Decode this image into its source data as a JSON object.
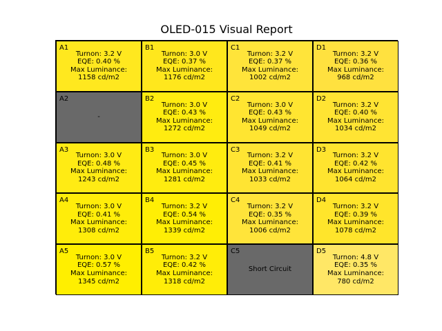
{
  "chart_data": {
    "type": "heatmap",
    "title": "OLED-015 Visual Report",
    "colors": {
      "failed": "#696969",
      "colormap": "luminance-scaled yellow",
      "border": "#000000"
    },
    "labels": {
      "turnon": "Turnon:",
      "eqe": "EQE:",
      "max_luminance": "Max Luminance:"
    },
    "cells": [
      {
        "id": "A1",
        "status": "ok",
        "turnon": "3.2 V",
        "eqe": "0.40 %",
        "max_lum": 1158,
        "lum_text": "1158 cd/m2",
        "color": "#ffe81f"
      },
      {
        "id": "B1",
        "status": "ok",
        "turnon": "3.0 V",
        "eqe": "0.37 %",
        "max_lum": 1176,
        "lum_text": "1176 cd/m2",
        "color": "#ffe71d"
      },
      {
        "id": "C1",
        "status": "ok",
        "turnon": "3.2 V",
        "eqe": "0.37 %",
        "max_lum": 1002,
        "lum_text": "1002 cd/m2",
        "color": "#ffe43a"
      },
      {
        "id": "D1",
        "status": "ok",
        "turnon": "3.2 V",
        "eqe": "0.36 %",
        "max_lum": 968,
        "lum_text": "968 cd/m2",
        "color": "#ffe13f"
      },
      {
        "id": "A2",
        "status": "fail",
        "text": "-",
        "color": "#696969"
      },
      {
        "id": "B2",
        "status": "ok",
        "turnon": "3.0 V",
        "eqe": "0.43 %",
        "max_lum": 1272,
        "lum_text": "1272 cd/m2",
        "color": "#ffec10"
      },
      {
        "id": "C2",
        "status": "ok",
        "turnon": "3.0 V",
        "eqe": "0.43 %",
        "max_lum": 1049,
        "lum_text": "1049 cd/m2",
        "color": "#ffe531"
      },
      {
        "id": "D2",
        "status": "ok",
        "turnon": "3.2 V",
        "eqe": "0.40 %",
        "max_lum": 1034,
        "lum_text": "1034 cd/m2",
        "color": "#ffe433"
      },
      {
        "id": "A3",
        "status": "ok",
        "turnon": "3.0 V",
        "eqe": "0.48 %",
        "max_lum": 1243,
        "lum_text": "1243 cd/m2",
        "color": "#ffeb14"
      },
      {
        "id": "B3",
        "status": "ok",
        "turnon": "3.0 V",
        "eqe": "0.45 %",
        "max_lum": 1281,
        "lum_text": "1281 cd/m2",
        "color": "#ffec0f"
      },
      {
        "id": "C3",
        "status": "ok",
        "turnon": "3.2 V",
        "eqe": "0.41 %",
        "max_lum": 1033,
        "lum_text": "1033 cd/m2",
        "color": "#ffe433"
      },
      {
        "id": "D3",
        "status": "ok",
        "turnon": "3.2 V",
        "eqe": "0.42 %",
        "max_lum": 1064,
        "lum_text": "1064 cd/m2",
        "color": "#ffe42f"
      },
      {
        "id": "A4",
        "status": "ok",
        "turnon": "3.0 V",
        "eqe": "0.41 %",
        "max_lum": 1308,
        "lum_text": "1308 cd/m2",
        "color": "#ffed0a"
      },
      {
        "id": "B4",
        "status": "ok",
        "turnon": "3.2 V",
        "eqe": "0.54 %",
        "max_lum": 1339,
        "lum_text": "1339 cd/m2",
        "color": "#ffee05"
      },
      {
        "id": "C4",
        "status": "ok",
        "turnon": "3.2 V",
        "eqe": "0.35 %",
        "max_lum": 1006,
        "lum_text": "1006 cd/m2",
        "color": "#ffe43a"
      },
      {
        "id": "D4",
        "status": "ok",
        "turnon": "3.2 V",
        "eqe": "0.39 %",
        "max_lum": 1078,
        "lum_text": "1078 cd/m2",
        "color": "#ffe52b"
      },
      {
        "id": "A5",
        "status": "ok",
        "turnon": "3.0 V",
        "eqe": "0.57 %",
        "max_lum": 1345,
        "lum_text": "1345 cd/m2",
        "color": "#ffef00"
      },
      {
        "id": "B5",
        "status": "ok",
        "turnon": "3.2 V",
        "eqe": "0.42 %",
        "max_lum": 1318,
        "lum_text": "1318 cd/m2",
        "color": "#ffed08"
      },
      {
        "id": "C5",
        "status": "fail",
        "text": "Short Circuit",
        "color": "#696969"
      },
      {
        "id": "D5",
        "status": "ok",
        "turnon": "4.8 V",
        "eqe": "0.35 %",
        "max_lum": 780,
        "lum_text": "780 cd/m2",
        "color": "#ffe766"
      }
    ]
  }
}
